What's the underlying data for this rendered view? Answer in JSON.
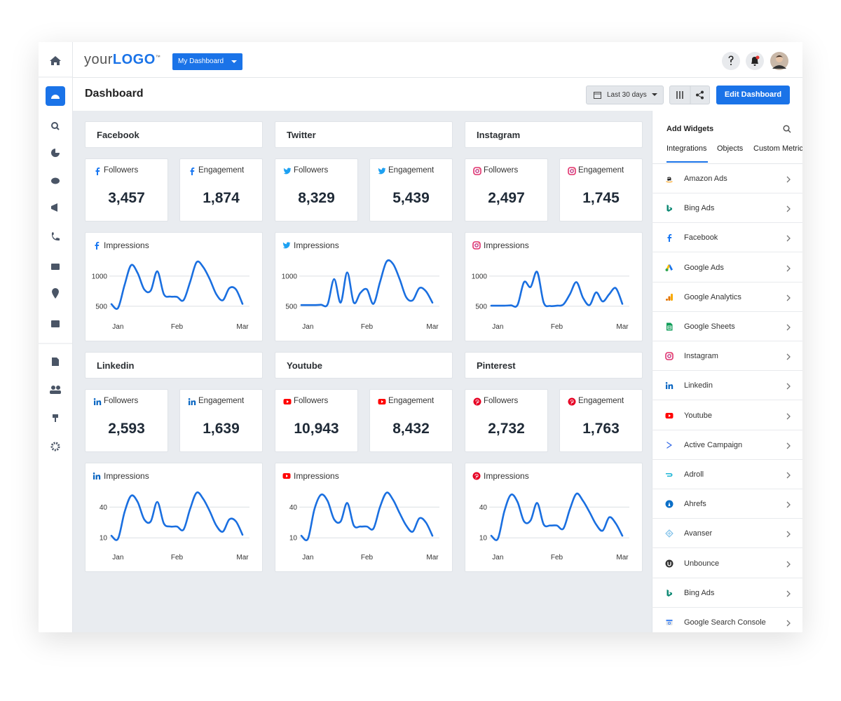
{
  "header": {
    "logo_your": "your",
    "logo_main": "LOGO",
    "logo_tm": "™",
    "dashboard_button": "My Dashboard"
  },
  "toolbar": {
    "title": "Dashboard",
    "date_range": "Last 30 days",
    "edit_button": "Edit Dashboard"
  },
  "platforms": [
    {
      "name": "Facebook",
      "followers": {
        "label": "Followers",
        "value": "3,457"
      },
      "engagement": {
        "label": "Engagement",
        "value": "1,874"
      },
      "impressions": {
        "type": "line",
        "title": "Impressions",
        "categories": [
          null,
          "Jan",
          null,
          null,
          null,
          null,
          null,
          null,
          null,
          null,
          "Feb",
          null,
          null,
          null,
          null,
          null,
          null,
          null,
          null,
          null,
          "Mar"
        ],
        "values": [
          535,
          470,
          850,
          1180,
          1050,
          780,
          760,
          1080,
          700,
          660,
          655,
          600,
          900,
          1230,
          1150,
          950,
          700,
          600,
          800,
          780,
          540
        ],
        "ylim": [
          400,
          1300
        ],
        "yticks": [
          500,
          1000
        ],
        "color": "#1a6fe0",
        "grid": true
      }
    },
    {
      "name": "Twitter",
      "followers": {
        "label": "Followers",
        "value": "8,329"
      },
      "engagement": {
        "label": "Engagement",
        "value": "5,439"
      },
      "impressions": {
        "type": "line",
        "title": "Impressions",
        "categories": [
          null,
          "Jan",
          null,
          null,
          null,
          null,
          null,
          null,
          null,
          null,
          "Feb",
          null,
          null,
          null,
          null,
          null,
          null,
          null,
          null,
          null,
          "Mar"
        ],
        "values": [
          520,
          520,
          520,
          525,
          530,
          950,
          560,
          1060,
          560,
          720,
          780,
          540,
          900,
          1240,
          1200,
          950,
          650,
          600,
          800,
          750,
          560
        ],
        "ylim": [
          400,
          1300
        ],
        "yticks": [
          500,
          1000
        ],
        "color": "#1a6fe0",
        "grid": true
      }
    },
    {
      "name": "Instagram",
      "followers": {
        "label": "Followers",
        "value": "2,497"
      },
      "engagement": {
        "label": "Engagement",
        "value": "1,745"
      },
      "impressions": {
        "type": "line",
        "title": "Impressions",
        "categories": [
          null,
          "Jan",
          null,
          null,
          null,
          null,
          null,
          null,
          null,
          null,
          "Feb",
          null,
          null,
          null,
          null,
          null,
          null,
          null,
          null,
          null,
          "Mar"
        ],
        "values": [
          510,
          510,
          510,
          515,
          520,
          900,
          820,
          1070,
          560,
          505,
          510,
          530,
          700,
          900,
          640,
          520,
          730,
          580,
          700,
          800,
          540
        ],
        "ylim": [
          400,
          1300
        ],
        "yticks": [
          500,
          1000
        ],
        "color": "#1a6fe0",
        "grid": true
      }
    },
    {
      "name": "Linkedin",
      "followers": {
        "label": "Followers",
        "value": "2,593"
      },
      "engagement": {
        "label": "Engagement",
        "value": "1,639"
      },
      "impressions": {
        "type": "line",
        "title": "Impressions",
        "categories": [
          null,
          "Jan",
          null,
          null,
          null,
          null,
          null,
          null,
          null,
          null,
          "Feb",
          null,
          null,
          null,
          null,
          null,
          null,
          null,
          null,
          null,
          "Mar"
        ],
        "values": [
          12,
          9,
          35,
          51,
          45,
          28,
          26,
          45,
          24,
          21,
          21,
          18,
          38,
          54,
          48,
          36,
          22,
          16,
          28,
          26,
          13
        ],
        "ylim": [
          5,
          58
        ],
        "yticks": [
          10,
          40
        ],
        "color": "#1a6fe0",
        "grid": true
      }
    },
    {
      "name": "Youtube",
      "followers": {
        "label": "Followers",
        "value": "10,943"
      },
      "engagement": {
        "label": "Engagement",
        "value": "8,432"
      },
      "impressions": {
        "type": "line",
        "title": "Impressions",
        "categories": [
          null,
          "Jan",
          null,
          null,
          null,
          null,
          null,
          null,
          null,
          null,
          "Feb",
          null,
          null,
          null,
          null,
          null,
          null,
          null,
          null,
          null,
          "Mar"
        ],
        "values": [
          12,
          9,
          38,
          52,
          46,
          28,
          26,
          44,
          22,
          21,
          21,
          19,
          40,
          54,
          47,
          34,
          22,
          16,
          29,
          25,
          12
        ],
        "ylim": [
          5,
          58
        ],
        "yticks": [
          10,
          40
        ],
        "color": "#1a6fe0",
        "grid": true
      }
    },
    {
      "name": "Pinterest",
      "followers": {
        "label": "Followers",
        "value": "2,732"
      },
      "engagement": {
        "label": "Engagement",
        "value": "1,763"
      },
      "impressions": {
        "type": "line",
        "title": "Impressions",
        "categories": [
          null,
          "Jan",
          null,
          null,
          null,
          null,
          null,
          null,
          null,
          null,
          "Feb",
          null,
          null,
          null,
          null,
          null,
          null,
          null,
          null,
          null,
          "Mar"
        ],
        "values": [
          12,
          9,
          36,
          52,
          45,
          26,
          27,
          44,
          23,
          22,
          22,
          19,
          38,
          53,
          46,
          35,
          23,
          17,
          30,
          24,
          12
        ],
        "ylim": [
          5,
          58
        ],
        "yticks": [
          10,
          40
        ],
        "color": "#1a6fe0",
        "grid": true
      }
    }
  ],
  "sidebar": {
    "title": "Add Widgets",
    "tabs": [
      "Integrations",
      "Objects",
      "Custom Metrics"
    ],
    "integrations": [
      "Amazon Ads",
      "Bing Ads",
      "Facebook",
      "Google Ads",
      "Google Analytics",
      "Google Sheets",
      "Instagram",
      "Linkedin",
      "Youtube",
      "Active Campaign",
      "Adroll",
      "Ahrefs",
      "Avanser",
      "Unbounce",
      "Bing Ads",
      "Google Search Console"
    ]
  }
}
